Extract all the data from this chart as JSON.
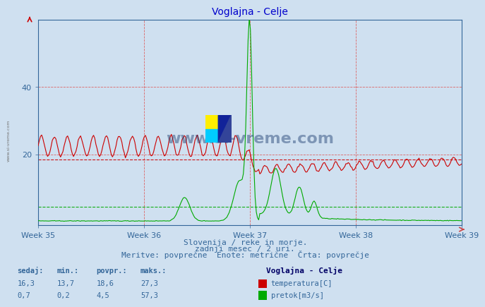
{
  "title": "Voglajna - Celje",
  "bg_color": "#cfe0f0",
  "plot_bg_color": "#cfe0f0",
  "temp_color": "#cc0000",
  "flow_color": "#00aa00",
  "avg_line_temp": 18.6,
  "avg_line_flow": 4.5,
  "ylim": [
    -1,
    60
  ],
  "yticks": [
    20,
    40
  ],
  "weeks": [
    "Week 35",
    "Week 36",
    "Week 37",
    "Week 38",
    "Week 39"
  ],
  "subtitle1": "Slovenija / reke in morje.",
  "subtitle2": "zadnji mesec / 2 uri.",
  "subtitle3": "Meritve: povprečne  Enote: metrične  Črta: povprečje",
  "legend_title": "Voglajna - Celje",
  "table_headers": [
    "sedaj:",
    "min.:",
    "povpr.:",
    "maks.:"
  ],
  "temp_stats": [
    "16,3",
    "13,7",
    "18,6",
    "27,3"
  ],
  "flow_stats": [
    "0,7",
    "0,2",
    "4,5",
    "57,3"
  ],
  "temp_label": "temperatura[C]",
  "flow_label": "pretok[m3/s]",
  "n_points": 360
}
